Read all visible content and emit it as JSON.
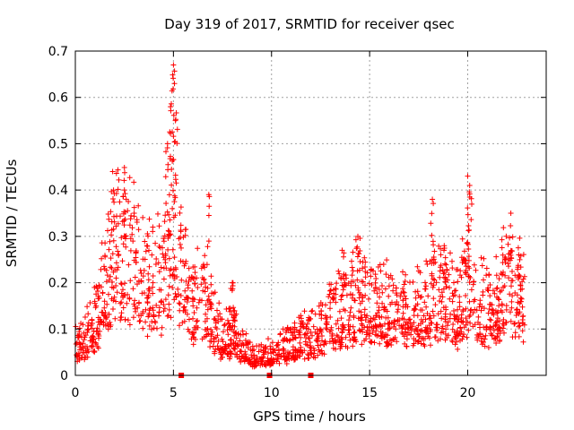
{
  "chart_data": {
    "type": "scatter",
    "title": "Day 319 of 2017, SRMTID for receiver qsec",
    "xlabel": "GPS time / hours",
    "ylabel": "SRMTID / TECUs",
    "xlim": [
      0,
      24
    ],
    "ylim": [
      0,
      0.7
    ],
    "xticks": [
      0,
      5,
      10,
      15,
      20
    ],
    "yticks": [
      0,
      0.1,
      0.2,
      0.3,
      0.4,
      0.5,
      0.6,
      0.7
    ],
    "grid": true,
    "marker": "plus",
    "color": "#ff0000",
    "profile": [
      [
        0.0,
        0.06
      ],
      [
        0.5,
        0.07
      ],
      [
        1.0,
        0.1
      ],
      [
        1.5,
        0.17
      ],
      [
        2.0,
        0.24
      ],
      [
        2.5,
        0.23
      ],
      [
        3.0,
        0.22
      ],
      [
        3.5,
        0.19
      ],
      [
        4.0,
        0.18
      ],
      [
        4.5,
        0.17
      ],
      [
        4.8,
        0.24
      ],
      [
        5.0,
        0.34
      ],
      [
        5.3,
        0.22
      ],
      [
        5.7,
        0.15
      ],
      [
        6.0,
        0.13
      ],
      [
        6.5,
        0.15
      ],
      [
        7.0,
        0.1
      ],
      [
        7.5,
        0.07
      ],
      [
        8.0,
        0.08
      ],
      [
        8.5,
        0.05
      ],
      [
        9.0,
        0.04
      ],
      [
        9.5,
        0.04
      ],
      [
        10.0,
        0.04
      ],
      [
        10.5,
        0.05
      ],
      [
        11.0,
        0.06
      ],
      [
        11.5,
        0.07
      ],
      [
        12.0,
        0.07
      ],
      [
        12.5,
        0.09
      ],
      [
        13.0,
        0.1
      ],
      [
        13.5,
        0.12
      ],
      [
        14.0,
        0.13
      ],
      [
        14.5,
        0.14
      ],
      [
        15.0,
        0.13
      ],
      [
        15.5,
        0.14
      ],
      [
        16.0,
        0.13
      ],
      [
        16.5,
        0.13
      ],
      [
        17.0,
        0.12
      ],
      [
        17.5,
        0.12
      ],
      [
        18.0,
        0.14
      ],
      [
        18.5,
        0.15
      ],
      [
        19.0,
        0.14
      ],
      [
        19.5,
        0.12
      ],
      [
        20.0,
        0.18
      ],
      [
        20.3,
        0.16
      ],
      [
        20.5,
        0.13
      ],
      [
        21.0,
        0.13
      ],
      [
        21.5,
        0.13
      ],
      [
        22.0,
        0.18
      ],
      [
        22.5,
        0.16
      ],
      [
        22.8,
        0.14
      ]
    ],
    "peaks": [
      {
        "x": 1.9,
        "y": 0.44
      },
      {
        "x": 2.5,
        "y": 0.4
      },
      {
        "x": 3.0,
        "y": 0.35
      },
      {
        "x": 4.7,
        "y": 0.5
      },
      {
        "x": 4.85,
        "y": 0.58
      },
      {
        "x": 5.0,
        "y": 0.67
      },
      {
        "x": 5.05,
        "y": 0.63
      },
      {
        "x": 5.1,
        "y": 0.55
      },
      {
        "x": 6.8,
        "y": 0.39
      },
      {
        "x": 8.0,
        "y": 0.2
      },
      {
        "x": 13.6,
        "y": 0.27
      },
      {
        "x": 14.4,
        "y": 0.3
      },
      {
        "x": 18.2,
        "y": 0.38
      },
      {
        "x": 18.8,
        "y": 0.28
      },
      {
        "x": 20.0,
        "y": 0.43
      },
      {
        "x": 20.1,
        "y": 0.41
      },
      {
        "x": 22.2,
        "y": 0.35
      },
      {
        "x": 22.6,
        "y": 0.26
      }
    ],
    "gap_markers_x": [
      5.4,
      9.9,
      12.0
    ],
    "x_range_data": [
      0,
      22.9
    ]
  }
}
